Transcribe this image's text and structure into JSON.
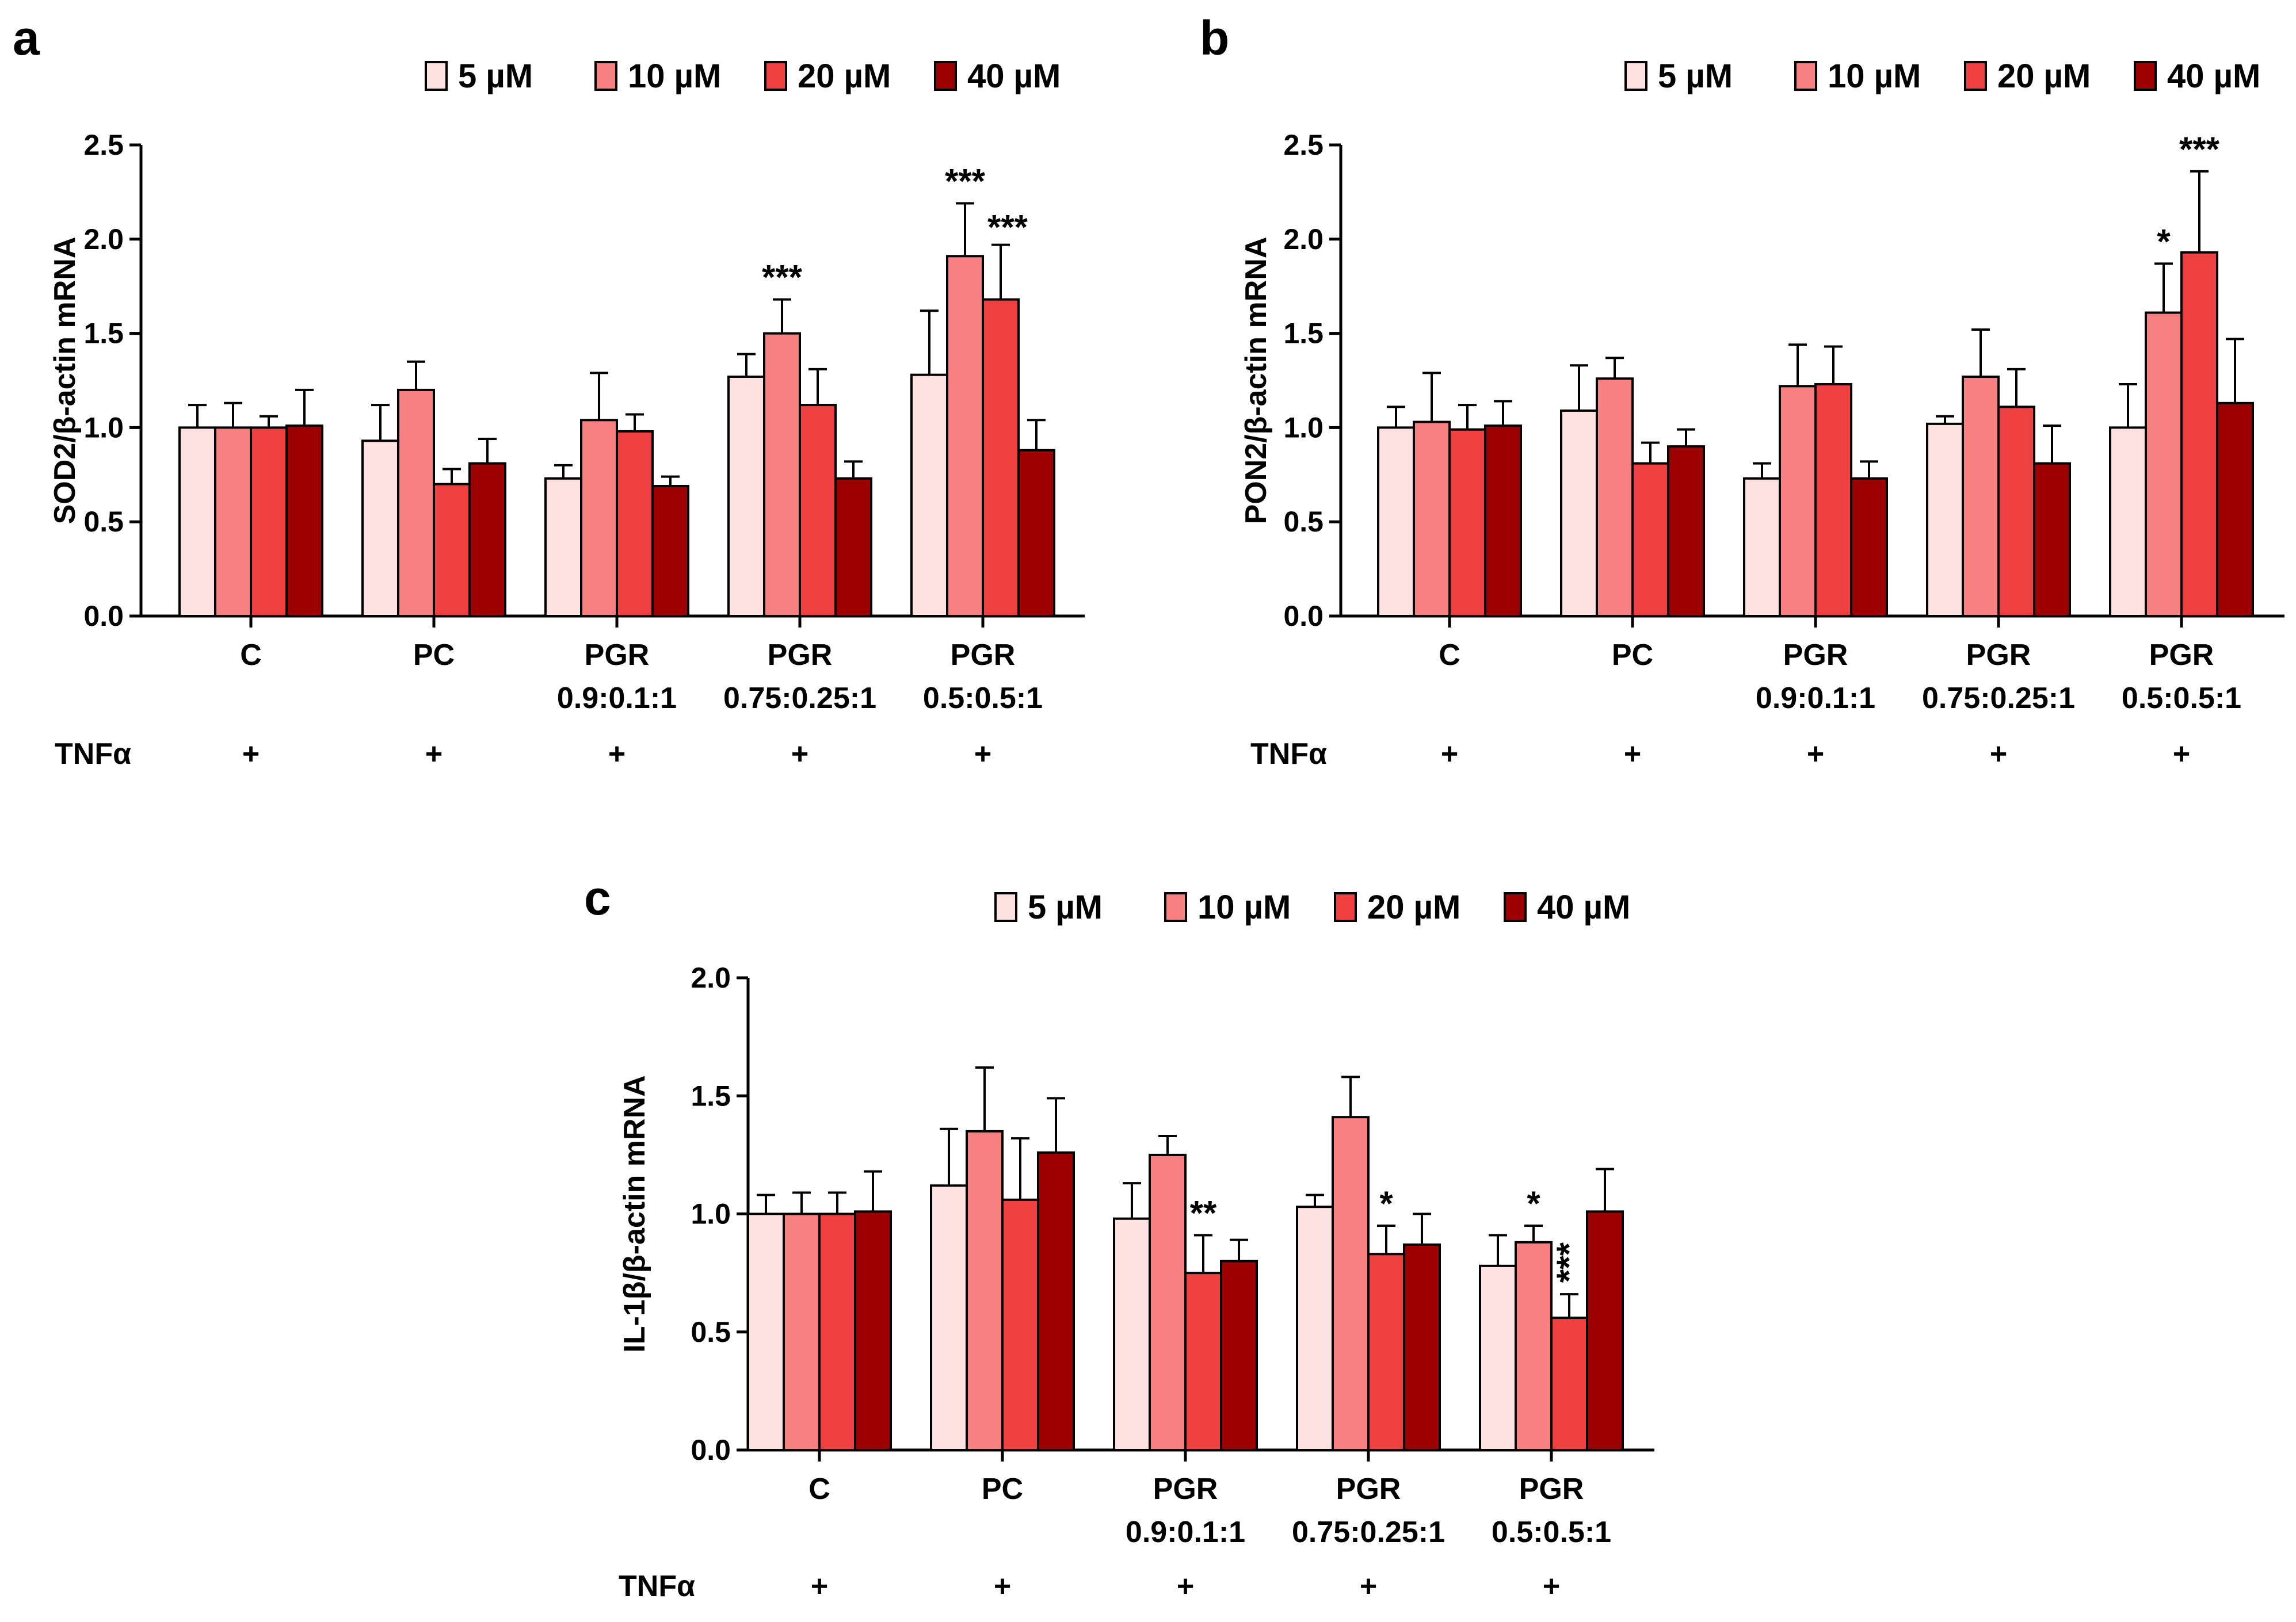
{
  "chart_data": [
    {
      "type": "bar",
      "panel": "a",
      "ylabel": "SOD2/β-actin mRNA",
      "ylim": [
        0,
        2.5
      ],
      "yticks": [
        0.0,
        0.5,
        1.0,
        1.5,
        2.0,
        2.5
      ],
      "ytick_labels": [
        "0.0",
        "0.5",
        "1.0",
        "1.5",
        "2.0",
        "2.5"
      ],
      "categories": [
        [
          "C",
          ""
        ],
        [
          "PC",
          ""
        ],
        [
          "PGR",
          "0.9:0.1:1"
        ],
        [
          "PGR",
          "0.75:0.25:1"
        ],
        [
          "PGR",
          "0.5:0.5:1"
        ]
      ],
      "treatment_label": "TNFα",
      "treatment_marks": [
        "+",
        "+",
        "+",
        "+",
        "+"
      ],
      "legend": [
        "5 µM",
        "10 µM",
        "20 µM",
        "40 µM"
      ],
      "series": [
        {
          "name": "5 µM",
          "values": [
            1.0,
            0.93,
            0.73,
            1.27,
            1.28
          ],
          "errors": [
            0.12,
            0.19,
            0.07,
            0.12,
            0.34
          ],
          "significance": [
            "",
            "",
            "",
            "",
            ""
          ]
        },
        {
          "name": "10 µM",
          "values": [
            1.0,
            1.2,
            1.04,
            1.5,
            1.91
          ],
          "errors": [
            0.13,
            0.15,
            0.25,
            0.18,
            0.28
          ],
          "significance": [
            "",
            "",
            "",
            "***",
            "***"
          ]
        },
        {
          "name": "20 µM",
          "values": [
            1.0,
            0.7,
            0.98,
            1.12,
            1.68
          ],
          "errors": [
            0.06,
            0.08,
            0.09,
            0.19,
            0.29
          ],
          "significance": [
            "",
            "",
            "",
            "",
            "***"
          ]
        },
        {
          "name": "40 µM",
          "values": [
            1.01,
            0.81,
            0.69,
            0.73,
            0.88
          ],
          "errors": [
            0.19,
            0.13,
            0.05,
            0.09,
            0.16
          ],
          "significance": [
            "",
            "",
            "",
            "",
            ""
          ]
        }
      ]
    },
    {
      "type": "bar",
      "panel": "b",
      "ylabel": "PON2/β-actin mRNA",
      "ylim": [
        0,
        2.5
      ],
      "yticks": [
        0.0,
        0.5,
        1.0,
        1.5,
        2.0,
        2.5
      ],
      "ytick_labels": [
        "0.0",
        "0.5",
        "1.0",
        "1.5",
        "2.0",
        "2.5"
      ],
      "categories": [
        [
          "C",
          ""
        ],
        [
          "PC",
          ""
        ],
        [
          "PGR",
          "0.9:0.1:1"
        ],
        [
          "PGR",
          "0.75:0.25:1"
        ],
        [
          "PGR",
          "0.5:0.5:1"
        ]
      ],
      "treatment_label": "TNFα",
      "treatment_marks": [
        "+",
        "+",
        "+",
        "+",
        "+"
      ],
      "legend": [
        "5 µM",
        "10 µM",
        "20 µM",
        "40 µM"
      ],
      "series": [
        {
          "name": "5 µM",
          "values": [
            1.0,
            1.09,
            0.73,
            1.02,
            1.0
          ],
          "errors": [
            0.11,
            0.24,
            0.08,
            0.04,
            0.23
          ],
          "significance": [
            "",
            "",
            "",
            "",
            ""
          ]
        },
        {
          "name": "10 µM",
          "values": [
            1.03,
            1.26,
            1.22,
            1.27,
            1.61
          ],
          "errors": [
            0.26,
            0.11,
            0.22,
            0.25,
            0.26
          ],
          "significance": [
            "",
            "",
            "",
            "",
            "*"
          ]
        },
        {
          "name": "20 µM",
          "values": [
            0.99,
            0.81,
            1.23,
            1.11,
            1.93
          ],
          "errors": [
            0.13,
            0.11,
            0.2,
            0.2,
            0.43
          ],
          "significance": [
            "",
            "",
            "",
            "",
            "***"
          ]
        },
        {
          "name": "40 µM",
          "values": [
            1.01,
            0.9,
            0.73,
            0.81,
            1.13
          ],
          "errors": [
            0.13,
            0.09,
            0.09,
            0.2,
            0.34
          ],
          "significance": [
            "",
            "",
            "",
            "",
            ""
          ]
        }
      ]
    },
    {
      "type": "bar",
      "panel": "c",
      "ylabel": "IL-1β/β-actin mRNA",
      "ylim": [
        0,
        2.0
      ],
      "yticks": [
        0.0,
        0.5,
        1.0,
        1.5,
        2.0
      ],
      "ytick_labels": [
        "0.0",
        "0.5",
        "1.0",
        "1.5",
        "2.0"
      ],
      "categories": [
        [
          "C",
          ""
        ],
        [
          "PC",
          ""
        ],
        [
          "PGR",
          "0.9:0.1:1"
        ],
        [
          "PGR",
          "0.75:0.25:1"
        ],
        [
          "PGR",
          "0.5:0.5:1"
        ]
      ],
      "treatment_label": "TNFα",
      "treatment_marks": [
        "+",
        "+",
        "+",
        "+",
        "+"
      ],
      "legend": [
        "5 µM",
        "10 µM",
        "20 µM",
        "40 µM"
      ],
      "series": [
        {
          "name": "5 µM",
          "values": [
            1.0,
            1.12,
            0.98,
            1.03,
            0.78
          ],
          "errors": [
            0.08,
            0.24,
            0.15,
            0.05,
            0.13
          ],
          "significance": [
            "",
            "",
            "",
            "",
            ""
          ]
        },
        {
          "name": "10 µM",
          "values": [
            1.0,
            1.35,
            1.25,
            1.41,
            0.88
          ],
          "errors": [
            0.09,
            0.27,
            0.08,
            0.17,
            0.07
          ],
          "significance": [
            "",
            "",
            "",
            "",
            "*"
          ]
        },
        {
          "name": "20 µM",
          "values": [
            1.0,
            1.06,
            0.75,
            0.83,
            0.56
          ],
          "errors": [
            0.09,
            0.26,
            0.16,
            0.12,
            0.1
          ],
          "significance": [
            "",
            "",
            "**",
            "*",
            "***"
          ]
        },
        {
          "name": "40 µM",
          "values": [
            1.01,
            1.26,
            0.8,
            0.87,
            1.01
          ],
          "errors": [
            0.17,
            0.23,
            0.09,
            0.13,
            0.18
          ],
          "significance": [
            "",
            "",
            "",
            "",
            ""
          ]
        }
      ]
    }
  ],
  "colors": [
    "#fde1e1",
    "#f78080",
    "#ee4040",
    "#9c0000"
  ]
}
